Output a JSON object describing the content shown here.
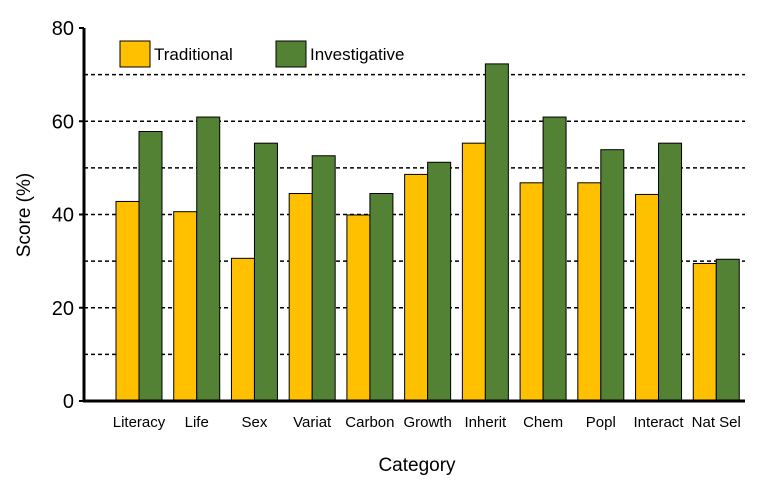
{
  "chart_data": {
    "type": "bar",
    "title": "",
    "xlabel": "Category",
    "ylabel": "Score (%)",
    "ylim": [
      0,
      80
    ],
    "yticks": [
      0,
      20,
      40,
      60,
      80
    ],
    "grid": "horizontal dashed",
    "legend_position": "top-left",
    "categories": [
      "Literacy",
      "Life",
      "Sex",
      "Variat",
      "Carbon",
      "Growth",
      "Inherit",
      "Chem",
      "Popl",
      "Interact",
      "Nat Sel"
    ],
    "series": [
      {
        "name": "Traditional",
        "color": "#FFC000",
        "values": [
          42.8,
          40.6,
          30.6,
          44.5,
          39.9,
          48.6,
          55.3,
          46.8,
          46.8,
          44.3,
          29.5
        ]
      },
      {
        "name": "Investigative",
        "color": "#548235",
        "values": [
          57.8,
          60.9,
          55.3,
          52.6,
          44.5,
          51.2,
          72.3,
          60.9,
          53.9,
          55.3,
          30.4
        ]
      }
    ]
  }
}
